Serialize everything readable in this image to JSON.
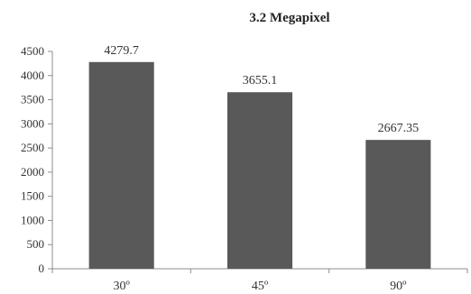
{
  "chart_data": {
    "type": "bar",
    "title": "3.2 Megapixel",
    "categories": [
      "30º",
      "45º",
      "90º"
    ],
    "values": [
      4279.7,
      3655.1,
      2667.35
    ],
    "data_labels": [
      "4279.7",
      "3655.1",
      "2667.35"
    ],
    "xlabel": "",
    "ylabel": "",
    "ylim": [
      0,
      4500
    ],
    "yticks": [
      "0",
      "500",
      "1000",
      "1500",
      "2000",
      "2500",
      "3000",
      "3500",
      "4000",
      "4500"
    ],
    "grid": false,
    "legend": "none",
    "bar_color": "#595959"
  }
}
